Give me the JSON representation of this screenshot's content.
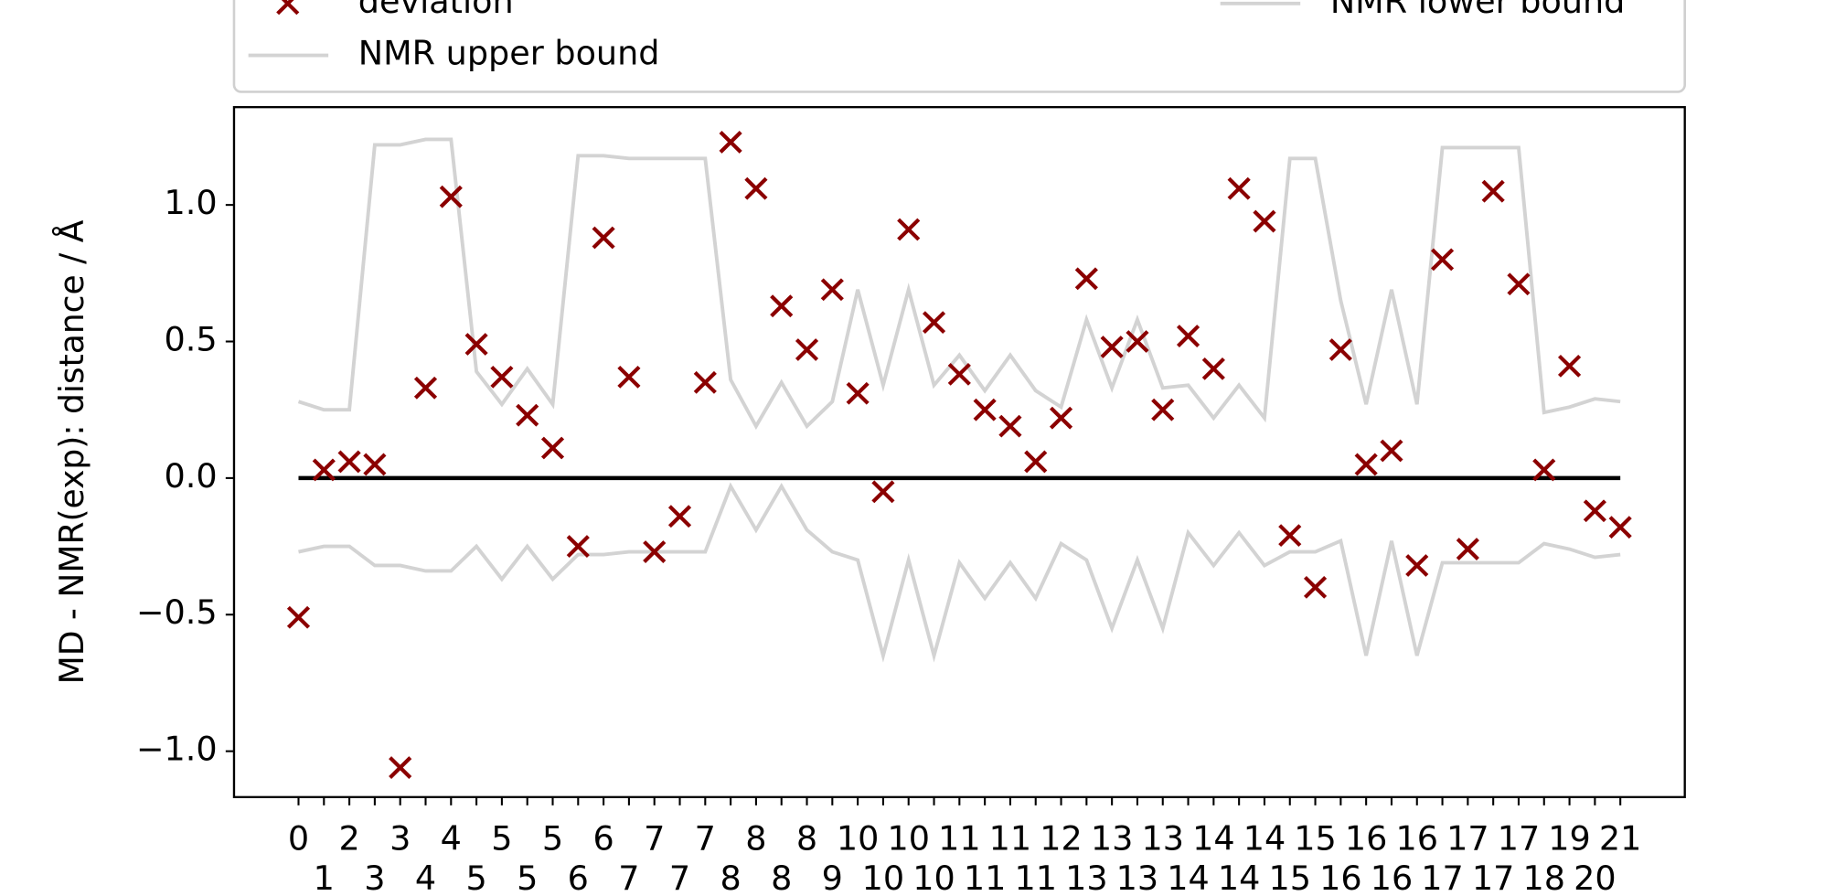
{
  "chart_data": {
    "type": "scatter",
    "y_label": "MD - NMR(exp): distance / Å",
    "categories": [
      "0",
      "1",
      "2",
      "3",
      "3",
      "4",
      "4",
      "5",
      "5",
      "5",
      "5",
      "6",
      "6",
      "7",
      "7",
      "7",
      "7",
      "8",
      "8",
      "8",
      "8",
      "9",
      "10",
      "10",
      "10",
      "10",
      "11",
      "11",
      "11",
      "11",
      "12",
      "13",
      "13",
      "13",
      "13",
      "14",
      "14",
      "14",
      "14",
      "15",
      "15",
      "16",
      "16",
      "16",
      "16",
      "17",
      "17",
      "17",
      "17",
      "18",
      "19",
      "20",
      "21"
    ],
    "series": [
      {
        "name": "deviation",
        "kind": "scatter",
        "marker": "x",
        "color": "#8b0000",
        "values": [
          -0.51,
          0.03,
          0.06,
          0.05,
          -1.06,
          0.33,
          1.03,
          0.49,
          0.37,
          0.23,
          0.11,
          -0.25,
          0.88,
          0.37,
          -0.27,
          -0.14,
          0.35,
          1.23,
          1.06,
          0.63,
          0.47,
          0.69,
          0.31,
          -0.05,
          0.91,
          0.57,
          0.38,
          0.25,
          0.19,
          0.06,
          0.22,
          0.73,
          0.48,
          0.5,
          0.25,
          0.52,
          0.4,
          1.06,
          0.94,
          -0.21,
          -0.4,
          0.47,
          0.05,
          0.1,
          -0.32,
          0.8,
          -0.26,
          1.05,
          0.71,
          0.03,
          0.41,
          -0.12,
          -0.18
        ]
      },
      {
        "name": "NMR upper bound",
        "kind": "line",
        "color": "#d3d3d3",
        "values": [
          0.28,
          0.25,
          0.25,
          1.22,
          1.22,
          1.24,
          1.24,
          0.39,
          0.27,
          0.4,
          0.27,
          1.18,
          1.18,
          1.17,
          1.17,
          1.17,
          1.17,
          0.36,
          0.19,
          0.35,
          0.19,
          0.28,
          0.69,
          0.34,
          0.69,
          0.34,
          0.45,
          0.32,
          0.45,
          0.32,
          0.26,
          0.58,
          0.33,
          0.58,
          0.33,
          0.34,
          0.22,
          0.34,
          0.22,
          1.17,
          1.17,
          0.65,
          0.27,
          0.69,
          0.27,
          1.21,
          1.21,
          1.21,
          1.21,
          0.24,
          0.26,
          0.29,
          0.28
        ]
      },
      {
        "name": "NMR lower bound",
        "kind": "line",
        "color": "#d3d3d3",
        "values": [
          -0.27,
          -0.25,
          -0.25,
          -0.32,
          -0.32,
          -0.34,
          -0.34,
          -0.25,
          -0.37,
          -0.25,
          -0.37,
          -0.28,
          -0.28,
          -0.27,
          -0.27,
          -0.27,
          -0.27,
          -0.03,
          -0.19,
          -0.03,
          -0.19,
          -0.27,
          -0.3,
          -0.65,
          -0.3,
          -0.65,
          -0.31,
          -0.44,
          -0.31,
          -0.44,
          -0.24,
          -0.3,
          -0.55,
          -0.3,
          -0.55,
          -0.2,
          -0.32,
          -0.2,
          -0.32,
          -0.27,
          -0.27,
          -0.23,
          -0.65,
          -0.23,
          -0.65,
          -0.31,
          -0.31,
          -0.31,
          -0.31,
          -0.24,
          -0.26,
          -0.29,
          -0.28
        ]
      }
    ],
    "reference_line": {
      "value": 0,
      "color": "#000000"
    },
    "ylim": [
      -1.168,
      1.358
    ],
    "yticks": [
      {
        "value": -1,
        "label": "−1.0"
      },
      {
        "value": -0.5,
        "label": "−0.5"
      },
      {
        "value": 0,
        "label": "0.0"
      },
      {
        "value": 0.5,
        "label": "0.5"
      },
      {
        "value": 1,
        "label": "1.0"
      }
    ],
    "grid": false,
    "legend": "top"
  }
}
